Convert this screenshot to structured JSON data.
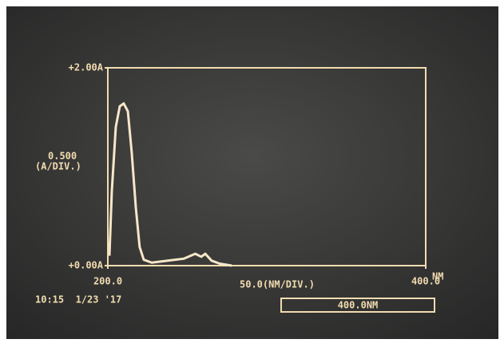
{
  "chart_data": {
    "type": "line",
    "x": [
      201,
      202.5,
      205,
      207.5,
      210,
      212.6,
      215,
      217.6,
      220,
      222.6,
      227.6,
      237.7,
      247.7,
      255,
      258.8,
      261.3,
      265.3,
      270.4,
      278
    ],
    "series": [
      {
        "color": "#f6e7c9",
        "values": [
          0.1,
          0.75,
          1.4,
          1.61,
          1.64,
          1.56,
          1.15,
          0.59,
          0.19,
          0.06,
          0.03,
          0.05,
          0.07,
          0.12,
          0.09,
          0.12,
          0.05,
          0.02,
          0.0
        ]
      }
    ],
    "xlim": [
      200,
      400
    ],
    "ylim": [
      0,
      2
    ],
    "xticks": [
      {
        "value": 200,
        "label": "200.0"
      },
      {
        "value": 400,
        "label": "400.0"
      }
    ],
    "yticks": [
      {
        "value": 0,
        "label": "+0.00A"
      },
      {
        "value": 2,
        "label": "+2.00A"
      }
    ],
    "annotations": {
      "y_scale": "0.500",
      "y_unit": "(A/DIV.)",
      "x_scale": "50.0(NM/DIV.)",
      "x_unit": "NM",
      "timestamp": "10:15  1/23 '17",
      "wavelength": "400.0NM"
    }
  }
}
